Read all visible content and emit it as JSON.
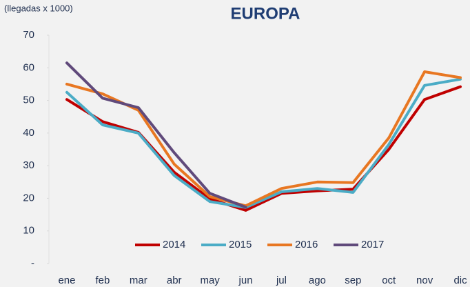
{
  "chart_data": {
    "type": "line",
    "title": "EUROPA",
    "y_label": "(llegadas x 1000)",
    "categories": [
      "ene",
      "feb",
      "mar",
      "abr",
      "may",
      "jun",
      "jul",
      "ago",
      "sep",
      "oct",
      "nov",
      "dic"
    ],
    "series": [
      {
        "name": "2014",
        "color": "#c00000",
        "values": [
          50.3,
          43.5,
          40.2,
          28,
          19.8,
          16.3,
          21.5,
          22.3,
          22.8,
          35,
          50.3,
          54.2
        ]
      },
      {
        "name": "2015",
        "color": "#4bacc6",
        "values": [
          52.5,
          42.5,
          40,
          27,
          19,
          17.2,
          22,
          23,
          21.8,
          36.5,
          54.6,
          56.5
        ]
      },
      {
        "name": "2016",
        "color": "#e87722",
        "values": [
          55,
          52,
          47,
          30.5,
          20.5,
          17.7,
          23,
          25,
          24.8,
          38.5,
          58.8,
          57
        ]
      },
      {
        "name": "2017",
        "color": "#604a7b",
        "values": [
          61.5,
          50.7,
          47.8,
          34,
          21.5,
          17.3,
          null,
          null,
          null,
          null,
          null,
          null
        ]
      }
    ],
    "ylim": [
      0,
      70
    ],
    "yticks": [
      {
        "value": 0,
        "label": "-"
      },
      10,
      20,
      30,
      40,
      50,
      60,
      70
    ],
    "grid": false,
    "legend": "bottom"
  }
}
